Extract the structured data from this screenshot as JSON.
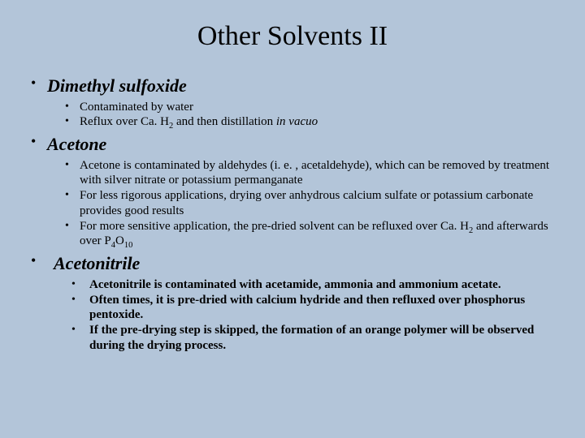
{
  "title": "Other Solvents II",
  "sections": [
    {
      "heading": "Dimethyl sulfoxide",
      "items": [
        {
          "html": "Contaminated by water"
        },
        {
          "html": "Reflux over Ca. H<sub>2</sub> and then distillation <span class='italic'>in vacuo</span>"
        }
      ]
    },
    {
      "heading": "Acetone",
      "items": [
        {
          "html": "Acetone is contaminated by aldehydes (i. e. , acetaldehyde), which can be removed by treatment with silver nitrate or potassium permanganate"
        },
        {
          "html": "For less rigorous applications, drying over anhydrous calcium sulfate or potassium carbonate provides good results"
        },
        {
          "html": "For more sensitive application, the pre-dried solvent can be refluxed over  Ca. H<sub>2</sub> and afterwards over P<sub>4</sub>O<sub>10</sub>"
        }
      ]
    },
    {
      "heading": "Acetonitrile",
      "aceto": true,
      "items": [
        {
          "html": "Acetonitrile is contaminated with acetamide, ammonia and ammonium acetate."
        },
        {
          "html": "Often times, it is pre-dried with calcium hydride and then refluxed over phosphorus pentoxide."
        },
        {
          "html": "If the pre-drying step is skipped, the formation of an orange polymer will be observed during the drying process."
        }
      ]
    }
  ],
  "colors": {
    "background": "#b3c5d9",
    "text": "#000000"
  },
  "fonts": {
    "title_size": 34,
    "heading_size": 22,
    "body_size": 15
  }
}
